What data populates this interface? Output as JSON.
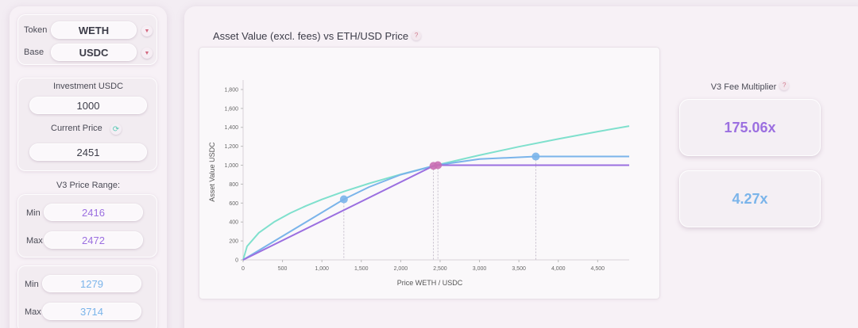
{
  "sidebar": {
    "token": {
      "label": "Token",
      "value": "WETH"
    },
    "base": {
      "label": "Base",
      "value": "USDC"
    },
    "investment": {
      "label": "Investment USDC",
      "value": "1000"
    },
    "current_price": {
      "label": "Current Price",
      "value": "2451"
    },
    "v3_range": {
      "label": "V3 Price Range:",
      "min_label": "Min",
      "min_value": "2416",
      "max_label": "Max",
      "max_value": "2472"
    },
    "v2_range": {
      "min_label": "Min",
      "min_value": "1279",
      "max_label": "Max",
      "max_value": "3714"
    }
  },
  "colors": {
    "purple": "#9b6fe0",
    "blue": "#7ab4ea",
    "teal": "#7fe0cd",
    "pink": "#c96fb2"
  },
  "chart_title": "Asset Value (excl. fees) vs ETH/USD Price",
  "multiplier": {
    "label": "V3 Fee Multiplier",
    "value_primary": "175.06x",
    "value_secondary": "4.27x"
  },
  "chart_data": {
    "type": "line",
    "xlabel": "Price WETH / USDC",
    "ylabel": "Asset Value USDC",
    "xlim": [
      0,
      4900
    ],
    "ylim": [
      0,
      1900
    ],
    "x_ticks": [
      "0",
      "500",
      "1,000",
      "1,500",
      "2,000",
      "2,500",
      "3,000",
      "3,500",
      "4,000",
      "4,500"
    ],
    "y_ticks": [
      "0",
      "200",
      "400",
      "600",
      "800",
      "1,000",
      "1,200",
      "1,400",
      "1,600",
      "1,800"
    ],
    "x_tick_values": [
      0,
      500,
      1000,
      1500,
      2000,
      2500,
      3000,
      3500,
      4000,
      4500
    ],
    "y_tick_values": [
      0,
      200,
      400,
      600,
      800,
      1000,
      1200,
      1400,
      1600,
      1800
    ],
    "grid": false,
    "current_price": 2451,
    "series": [
      {
        "color": "#7fe0cd",
        "x": [
          0,
          50,
          200,
          400,
          600,
          800,
          1000,
          1279,
          1600,
          2000,
          2451,
          3000,
          3500,
          4000,
          4500,
          4900
        ],
        "y": [
          0,
          143,
          286,
          404,
          495,
          571,
          639,
          722,
          808,
          903,
          1000,
          1106,
          1195,
          1277,
          1355,
          1414
        ]
      },
      {
        "color": "#7ab4ea",
        "x": [
          0,
          1279,
          1600,
          2000,
          2451,
          3000,
          3714,
          4900
        ],
        "y": [
          0,
          640,
          770,
          900,
          1000,
          1065,
          1092,
          1092
        ]
      },
      {
        "color": "#9b6fe0",
        "x": [
          0,
          2416,
          2472,
          4900
        ],
        "y": [
          0,
          993,
          1000,
          1000
        ]
      }
    ],
    "markers": [
      {
        "x": 1279,
        "y": 640,
        "color": "#7ab4ea"
      },
      {
        "x": 3714,
        "y": 1092,
        "color": "#7ab4ea"
      },
      {
        "x": 2416,
        "y": 993,
        "color": "#c96fb2"
      },
      {
        "x": 2472,
        "y": 1000,
        "color": "#c96fb2"
      }
    ]
  }
}
